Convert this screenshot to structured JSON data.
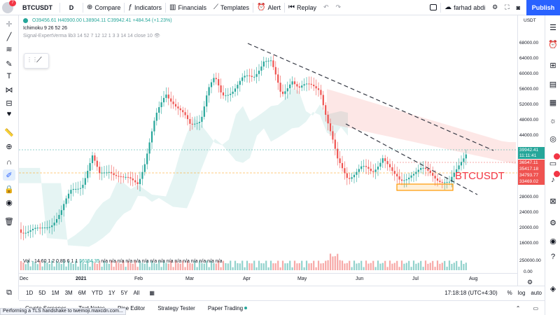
{
  "colors": {
    "up": "#26a69a",
    "down": "#ef5350",
    "accent": "#2962ff",
    "annotation": "#f23645"
  },
  "topbar": {
    "avatar_badge": "7",
    "symbol": "BTCUSDT",
    "interval": "D",
    "compare": "Compare",
    "indicators": "Indicators",
    "financials": "Financials",
    "templates": "Templates",
    "alert": "Alert",
    "replay": "Replay",
    "layout_name": "farhad abdi",
    "publish": "Publish"
  },
  "legend": {
    "ohlc": "O39456.61 H40900.00 L38904.11 C39942.41 +484.54 (+1.23%)",
    "ichimoku": "Ichimoku 9 26 52 26",
    "signal": "Signal-ExpertVerma lib3 14 52 7 12 12 1 3 3 14 14 close 10",
    "volume": "Vol · 14 60 1 2 0.85 6 1 1",
    "volume_value": "56154.35",
    "na_values": "n/a n/a n/a n/a n/a n/a n/a n/a n/a n/a n/a n/a n/a n/a n/a"
  },
  "price_scale": {
    "currency": "USDT",
    "labels": [
      "68000.00",
      "64000.00",
      "60000.00",
      "56000.00",
      "52000.00",
      "48000.00",
      "44000.00",
      "28000.00",
      "24000.00",
      "20000.00",
      "16000.00"
    ],
    "tags": [
      {
        "text": "39942.41",
        "color": "#26a69a"
      },
      {
        "text": "11:11:41",
        "color": "#26a69a"
      },
      {
        "text": "36547.11",
        "color": "#ef5350"
      },
      {
        "text": "35417.18",
        "color": "#ef5350"
      },
      {
        "text": "34793.77",
        "color": "#ef5350"
      },
      {
        "text": "33469.02",
        "color": "#ef5350"
      }
    ],
    "vol_labels": [
      "250000.00",
      "0.00"
    ]
  },
  "time_scale": [
    "Dec",
    "2021",
    "Feb",
    "Mar",
    "Apr",
    "May",
    "Jun",
    "Jul",
    "Aug"
  ],
  "annotation_text": "BTCUSDT",
  "bottom": {
    "ranges": [
      "1D",
      "5D",
      "1M",
      "3M",
      "6M",
      "YTD",
      "1Y",
      "5Y",
      "All"
    ],
    "clock": "17:18:18 (UTC+4:30)",
    "percent": "%",
    "log": "log",
    "auto": "auto"
  },
  "panels": [
    "Crypto Screener",
    "Text Notes",
    "Pine Editor",
    "Strategy Tester",
    "Paper Trading"
  ],
  "status": "Performing a TLS handshake to twemoji.maxcdn.com..."
}
